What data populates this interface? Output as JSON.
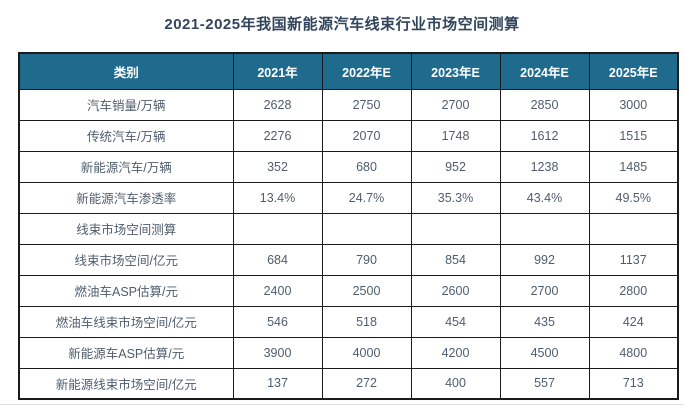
{
  "colors": {
    "page_bg": "#ffffff",
    "header_bg": "#1f6b8e",
    "header_text": "#ffffff",
    "title_text": "#32455c",
    "body_text": "#4f5d6d",
    "border": "#1b1b1b"
  },
  "chart_data": {
    "type": "table",
    "title": "2021-2025年我国新能源汽车线束行业市场空间测算",
    "columns": [
      "类别",
      "2021年",
      "2022年E",
      "2023年E",
      "2024年E",
      "2025年E"
    ],
    "rows": [
      {
        "label": "汽车销量/万辆",
        "values": [
          "2628",
          "2750",
          "2700",
          "2850",
          "3000"
        ]
      },
      {
        "label": "传统汽车/万辆",
        "values": [
          "2276",
          "2070",
          "1748",
          "1612",
          "1515"
        ]
      },
      {
        "label": "新能源汽车/万辆",
        "values": [
          "352",
          "680",
          "952",
          "1238",
          "1485"
        ]
      },
      {
        "label": "新能源汽车渗透率",
        "values": [
          "13.4%",
          "24.7%",
          "35.3%",
          "43.4%",
          "49.5%"
        ]
      },
      {
        "label": "线束市场空间测算",
        "values": [
          "",
          "",
          "",
          "",
          ""
        ]
      },
      {
        "label": "线束市场空间/亿元",
        "values": [
          "684",
          "790",
          "854",
          "992",
          "1137"
        ]
      },
      {
        "label": "燃油车ASP估算/元",
        "values": [
          "2400",
          "2500",
          "2600",
          "2700",
          "2800"
        ]
      },
      {
        "label": "燃油车线束市场空间/亿元",
        "values": [
          "546",
          "518",
          "454",
          "435",
          "424"
        ]
      },
      {
        "label": "新能源车ASP估算/元",
        "values": [
          "3900",
          "4000",
          "4200",
          "4500",
          "4800"
        ]
      },
      {
        "label": "新能源线束市场空间/亿元",
        "values": [
          "137",
          "272",
          "400",
          "557",
          "713"
        ]
      }
    ]
  }
}
